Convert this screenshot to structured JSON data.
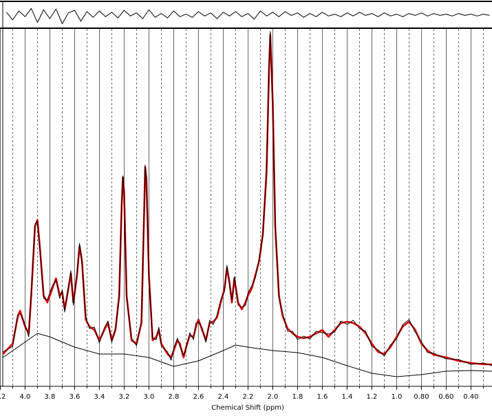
{
  "chart_data": [
    {
      "type": "line",
      "x": [
        4.15,
        4.1,
        4.05,
        4.0,
        3.95,
        3.9,
        3.85,
        3.8,
        3.75,
        3.7,
        3.65,
        3.6,
        3.55,
        3.5,
        3.45,
        3.4,
        3.35,
        3.3,
        3.25,
        3.2,
        3.15,
        3.1,
        3.05,
        3.0,
        2.95,
        2.9,
        2.85,
        2.8,
        2.75,
        2.7,
        2.65,
        2.6,
        2.55,
        2.5,
        2.45,
        2.4,
        2.35,
        2.3,
        2.25,
        2.2,
        2.15,
        2.1,
        2.05,
        2.0,
        1.95,
        1.9,
        1.85,
        1.8,
        1.75,
        1.7,
        1.65,
        1.6,
        1.55,
        1.5,
        1.45,
        1.4,
        1.35,
        1.3,
        1.25,
        1.2,
        1.15,
        1.1,
        1.05,
        1.0,
        0.95,
        0.9,
        0.85,
        0.8,
        0.75,
        0.7,
        0.65,
        0.6,
        0.55,
        0.5,
        0.45,
        0.4,
        0.35,
        0.3,
        0.25
      ],
      "xlim": [
        4.18,
        0.23
      ],
      "ylim": [
        -20,
        20
      ],
      "series": [
        {
          "color": "#000000",
          "values": [
            4,
            -8,
            6,
            -3,
            10,
            -12,
            8,
            -6,
            9,
            -14,
            3,
            7,
            -10,
            5,
            -4,
            6,
            -3,
            4,
            -5,
            7,
            -2,
            3,
            -6,
            8,
            -4,
            2,
            -5,
            6,
            -3,
            1,
            -4,
            5,
            -2,
            3,
            -6,
            4,
            -2,
            5,
            -3,
            2,
            -7,
            6,
            -2,
            4,
            -3,
            5,
            -1,
            3,
            -4,
            2,
            -3,
            4,
            -2,
            1,
            -3,
            3,
            -2,
            4,
            -1,
            2,
            -3,
            3,
            -2,
            1,
            -3,
            2,
            -1,
            3,
            -2,
            2,
            -1,
            1,
            -2,
            2,
            -1,
            1,
            -2,
            1,
            -1
          ]
        }
      ]
    },
    {
      "type": "line",
      "xlabel": "Chemical Shift (ppm)",
      "x": [
        4.178,
        4.1,
        4.06,
        4.04,
        4.0,
        3.97,
        3.95,
        3.92,
        3.9,
        3.88,
        3.85,
        3.82,
        3.78,
        3.75,
        3.72,
        3.7,
        3.68,
        3.65,
        3.63,
        3.61,
        3.58,
        3.56,
        3.54,
        3.51,
        3.48,
        3.44,
        3.4,
        3.36,
        3.33,
        3.3,
        3.27,
        3.24,
        3.22,
        3.21,
        3.2,
        3.18,
        3.14,
        3.1,
        3.06,
        3.04,
        3.03,
        3.02,
        3.0,
        2.97,
        2.94,
        2.92,
        2.9,
        2.85,
        2.82,
        2.8,
        2.77,
        2.75,
        2.72,
        2.7,
        2.67,
        2.64,
        2.62,
        2.6,
        2.57,
        2.54,
        2.51,
        2.48,
        2.45,
        2.42,
        2.39,
        2.37,
        2.35,
        2.33,
        2.31,
        2.28,
        2.25,
        2.22,
        2.2,
        2.17,
        2.14,
        2.11,
        2.08,
        2.05,
        2.03,
        2.02,
        2.0,
        1.98,
        1.95,
        1.92,
        1.88,
        1.84,
        1.8,
        1.75,
        1.7,
        1.65,
        1.6,
        1.55,
        1.5,
        1.45,
        1.4,
        1.35,
        1.3,
        1.25,
        1.2,
        1.15,
        1.1,
        1.05,
        1.0,
        0.95,
        0.9,
        0.85,
        0.8,
        0.75,
        0.7,
        0.6,
        0.5,
        0.4,
        0.3,
        0.23
      ],
      "xlim": [
        4.18,
        0.23
      ],
      "ylim": [
        0,
        520
      ],
      "grid": true,
      "xticks": [
        {
          "value": 4.2,
          "label": "4.2"
        },
        {
          "value": 4.0,
          "label": "4.0"
        },
        {
          "value": 3.8,
          "label": "3.8"
        },
        {
          "value": 3.6,
          "label": "3.6"
        },
        {
          "value": 3.4,
          "label": "3.4"
        },
        {
          "value": 3.2,
          "label": "3.2"
        },
        {
          "value": 3.0,
          "label": "3.0"
        },
        {
          "value": 2.8,
          "label": "2.8"
        },
        {
          "value": 2.6,
          "label": "2.6"
        },
        {
          "value": 2.4,
          "label": "2.4"
        },
        {
          "value": 2.2,
          "label": "2.2"
        },
        {
          "value": 2.0,
          "label": "2.0"
        },
        {
          "value": 1.8,
          "label": "1.8"
        },
        {
          "value": 1.6,
          "label": "1.6"
        },
        {
          "value": 1.4,
          "label": "1.4"
        },
        {
          "value": 1.2,
          "label": "1.2"
        },
        {
          "value": 1.0,
          "label": "1.0"
        },
        {
          "value": 0.8,
          "label": "0.80"
        },
        {
          "value": 0.6,
          "label": "0.60"
        },
        {
          "value": 0.4,
          "label": "0.40"
        }
      ],
      "xminorticks": [
        4.1,
        3.9,
        3.7,
        3.5,
        3.3,
        3.1,
        2.9,
        2.7,
        2.5,
        2.3,
        2.1,
        1.9,
        1.7,
        1.5,
        1.3,
        1.1,
        0.9,
        0.7,
        0.5,
        0.3
      ],
      "series": [
        {
          "color": "#e00000",
          "values": [
            47,
            62,
            100,
            110,
            87,
            77,
            132,
            232,
            242,
            202,
            132,
            122,
            142,
            157,
            132,
            137,
            112,
            142,
            164,
            122,
            162,
            204,
            182,
            97,
            87,
            82,
            67,
            82,
            92,
            67,
            82,
            132,
            262,
            304,
            282,
            132,
            67,
            62,
            92,
            242,
            319,
            302,
            162,
            67,
            72,
            82,
            62,
            47,
            42,
            52,
            67,
            62,
            42,
            57,
            74,
            72,
            87,
            97,
            82,
            67,
            92,
            94,
            100,
            122,
            142,
            172,
            152,
            122,
            157,
            122,
            112,
            122,
            132,
            142,
            162,
            182,
            222,
            312,
            462,
            512,
            412,
            232,
            132,
            102,
            84,
            77,
            72,
            70,
            72,
            77,
            82,
            72,
            82,
            92,
            94,
            92,
            87,
            77,
            62,
            50,
            47,
            57,
            72,
            87,
            94,
            82,
            62,
            52,
            46,
            42,
            37,
            34,
            32,
            32
          ]
        },
        {
          "color": "#000000",
          "values": [
            50,
            58,
            104,
            106,
            90,
            72,
            136,
            236,
            240,
            198,
            128,
            126,
            146,
            154,
            128,
            140,
            108,
            146,
            168,
            118,
            166,
            208,
            178,
            101,
            84,
            86,
            63,
            85,
            95,
            64,
            85,
            128,
            266,
            306,
            278,
            128,
            70,
            59,
            96,
            246,
            322,
            298,
            158,
            70,
            68,
            86,
            59,
            50,
            38,
            55,
            70,
            58,
            45,
            54,
            78,
            68,
            92,
            94,
            85,
            64,
            96,
            90,
            104,
            126,
            138,
            176,
            148,
            126,
            160,
            118,
            115,
            118,
            136,
            146,
            158,
            186,
            218,
            316,
            466,
            516,
            408,
            236,
            128,
            106,
            80,
            80,
            68,
            73,
            69,
            80,
            78,
            76,
            79,
            95,
            90,
            96,
            84,
            80,
            58,
            53,
            44,
            60,
            69,
            90,
            97,
            79,
            65,
            49,
            48,
            40,
            39,
            32,
            34,
            30
          ]
        },
        {
          "color": "#000000",
          "x": [
            4.178,
            3.9,
            3.8,
            3.6,
            3.4,
            3.2,
            3.0,
            2.8,
            2.6,
            2.4,
            2.3,
            2.2,
            2.0,
            1.8,
            1.6,
            1.4,
            1.2,
            1.0,
            0.8,
            0.6,
            0.4,
            0.23
          ],
          "values": [
            42,
            77,
            72,
            57,
            47,
            47,
            42,
            29,
            37,
            52,
            60,
            57,
            52,
            49,
            42,
            30,
            19,
            14,
            17,
            22,
            23,
            22
          ]
        }
      ]
    }
  ]
}
